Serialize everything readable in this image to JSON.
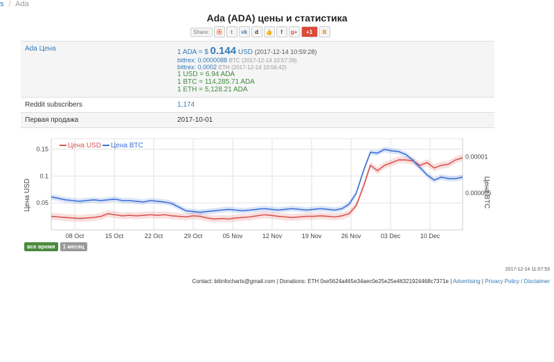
{
  "breadcrumb": {
    "prev": "s",
    "current": "Ada"
  },
  "page_title": "Ada (ADA) цены и статистика",
  "share": {
    "label": "Share:",
    "buttons": [
      "reddit-icon",
      "twitter-icon",
      "vk-icon",
      "digg-icon",
      "like-icon",
      "facebook-icon",
      "google-plus-icon",
      "google-plus-one-icon",
      "blogger-icon"
    ]
  },
  "stats": {
    "price_label": "Ada Цена",
    "price_prefix": "1 ADA = $",
    "price_value": "0.144",
    "price_unit": "USD",
    "price_time": "(2017-12-14 10:59:28)",
    "bittrex_btc": "bittrex: 0.0000088",
    "bittrex_btc_unit": "BTC",
    "bittrex_btc_time": "(2017-12-14 10:57:39)",
    "bittrex_eth": "bittrex: 0.0002",
    "bittrex_eth_unit": "ETH",
    "bittrex_eth_time": "(2017-12-14 10:56:42)",
    "conv_usd": "1 USD = 6.94 ADA",
    "conv_btc": "1 BTC = 114,285.71 ADA",
    "conv_eth": "1 ETH = 5,128.21 ADA",
    "reddit_label": "Reddit subscribers",
    "reddit_value": "1,174",
    "first_sale_label": "Первая продажа",
    "first_sale_value": "2017-10-01"
  },
  "chart_data": {
    "type": "line",
    "x_labels": [
      "08 Oct",
      "15 Oct",
      "22 Oct",
      "29 Oct",
      "05 Nov",
      "12 Nov",
      "19 Nov",
      "26 Nov",
      "03 Dec",
      "10 Dec"
    ],
    "ylabel_left": "Цена USD",
    "ylabel_right": "Цена BTC",
    "y_left_ticks": [
      "0.05",
      "0.1",
      "0.15"
    ],
    "y_right_ticks": [
      "0.000005",
      "0.00001"
    ],
    "series": [
      {
        "name": "Цена USD",
        "color": "#d9534f",
        "values": [
          0.025,
          0.024,
          0.023,
          0.022,
          0.021,
          0.022,
          0.023,
          0.025,
          0.03,
          0.028,
          0.026,
          0.027,
          0.026,
          0.027,
          0.028,
          0.027,
          0.028,
          0.026,
          0.025,
          0.024,
          0.026,
          0.025,
          0.022,
          0.02,
          0.021,
          0.02,
          0.022,
          0.023,
          0.024,
          0.026,
          0.028,
          0.027,
          0.025,
          0.024,
          0.023,
          0.024,
          0.025,
          0.025,
          0.026,
          0.025,
          0.024,
          0.026,
          0.03,
          0.045,
          0.08,
          0.12,
          0.11,
          0.12,
          0.125,
          0.13,
          0.13,
          0.128,
          0.12,
          0.125,
          0.115,
          0.12,
          0.122,
          0.13,
          0.134
        ]
      },
      {
        "name": "Цена BTC",
        "color": "#3a6fd8",
        "values": [
          4.5e-06,
          4.3e-06,
          4.1e-06,
          4e-06,
          3.9e-06,
          4e-06,
          4.1e-06,
          4e-06,
          4.1e-06,
          4.2e-06,
          4e-06,
          4e-06,
          3.9e-06,
          3.8e-06,
          4e-06,
          3.9e-06,
          3.8e-06,
          3.6e-06,
          3.1e-06,
          2.6e-06,
          2.5e-06,
          2.4e-06,
          2.5e-06,
          2.6e-06,
          2.7e-06,
          2.8e-06,
          2.7e-06,
          2.6e-06,
          2.7e-06,
          2.8e-06,
          2.9e-06,
          2.8e-06,
          2.7e-06,
          2.8e-06,
          2.9e-06,
          2.8e-06,
          2.7e-06,
          2.8e-06,
          2.9e-06,
          2.8e-06,
          2.7e-06,
          2.9e-06,
          3.5e-06,
          5e-06,
          8e-06,
          1.06e-05,
          1.05e-05,
          1.1e-05,
          1.08e-05,
          1.07e-05,
          1.03e-05,
          9.5e-06,
          8.5e-06,
          7.5e-06,
          6.8e-06,
          7.2e-06,
          7e-06,
          7e-06,
          7.2e-06
        ]
      }
    ],
    "legend": [
      "Цена USD",
      "Цена BTC"
    ]
  },
  "range_buttons": {
    "all": "все время",
    "month": "1 месяц"
  },
  "timestamp": "2017-12-14 11:07:53",
  "footer": {
    "contact": "Contact: bitinfocharts@gmail.com | Donations: ETH 0xe5624a465e34aec0e25e25e46321924468c7371e",
    "advertising": "Advertising",
    "privacy": "Privacy Policy / Disclaimer"
  }
}
